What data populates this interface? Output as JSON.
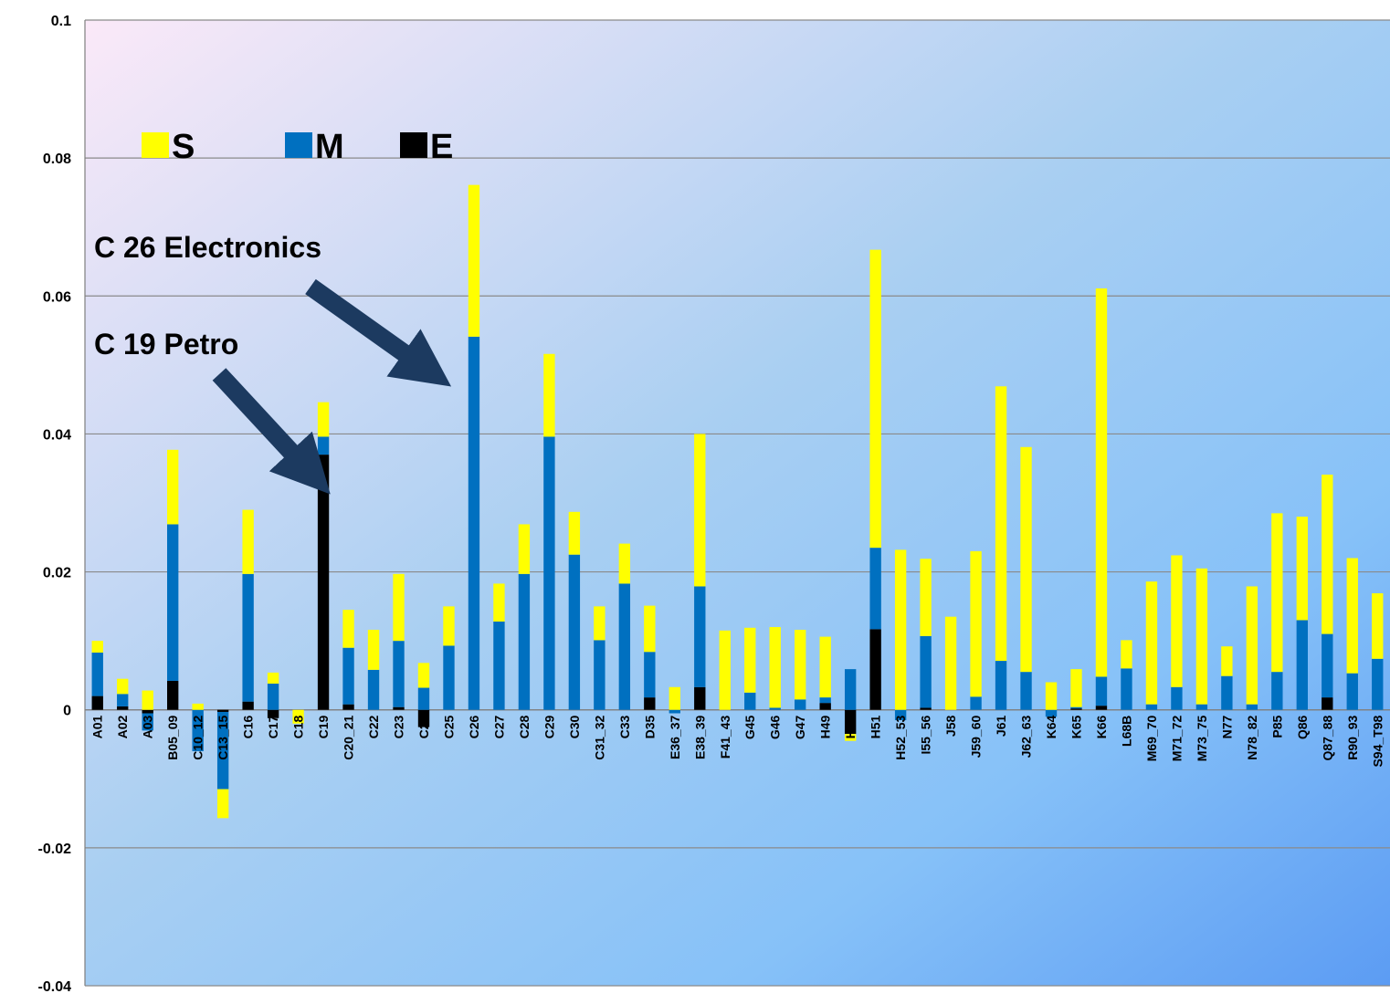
{
  "chart_data": {
    "type": "bar",
    "stacked": true,
    "title": "",
    "xlabel": "",
    "ylabel": "",
    "ylim": [
      -0.04,
      0.1
    ],
    "yticks": [
      -0.04,
      -0.02,
      0,
      0.02,
      0.04,
      0.06,
      0.08,
      0.1
    ],
    "ytick_labels": [
      "-0.04",
      "-0.02",
      "0",
      "0.02",
      "0.04",
      "0.06",
      "0.08",
      "0.1"
    ],
    "grid": "horizontal",
    "legend_placement": "top-left",
    "categories": [
      "A01",
      "A02",
      "A03",
      "B05_09",
      "C10_12",
      "C13_15",
      "C16",
      "C17",
      "C18",
      "C19",
      "C20_21",
      "C22",
      "C23",
      "C24",
      "C25",
      "C26",
      "C27",
      "C28",
      "C29",
      "C30",
      "C31_32",
      "C33",
      "D35",
      "E36_37",
      "E38_39",
      "F41_43",
      "G45",
      "G46",
      "G47",
      "H49",
      "H50",
      "H51",
      "H52_53",
      "I55_56",
      "J58",
      "J59_60",
      "J61",
      "J62_63",
      "K64",
      "K65",
      "K66",
      "L68B",
      "M69_70",
      "M71_72",
      "M73_75",
      "N77",
      "N78_82",
      "P85",
      "Q86",
      "Q87_88",
      "R90_93",
      "S94_T98"
    ],
    "series": [
      {
        "name": "E",
        "color": "#000000",
        "values": [
          0.002,
          0.0005,
          -0.0005,
          0.0042,
          0,
          -0.0003,
          0.0012,
          -0.0012,
          0,
          0.037,
          0.0008,
          0,
          0.0004,
          -0.0025,
          0,
          0,
          0,
          0,
          0,
          0,
          0,
          0,
          0.0018,
          0,
          0.0033,
          0,
          0,
          0,
          0,
          0.001,
          -0.0035,
          0.0117,
          0,
          0.0003,
          0,
          0,
          0,
          0,
          0,
          0.0002,
          0.0006,
          0,
          0,
          0,
          0,
          0,
          0,
          0,
          0,
          0.0018,
          0,
          0
        ]
      },
      {
        "name": "M",
        "color": "#0070c0",
        "values": [
          0.0063,
          0.0018,
          -0.0025,
          0.0227,
          -0.006,
          -0.0112,
          0.0185,
          0.0038,
          0,
          0.0026,
          0.0082,
          0.0058,
          0.0096,
          0.0032,
          0.0093,
          0.0541,
          0.0128,
          0.0197,
          0.0396,
          0.0225,
          0.0101,
          0.0183,
          0.0066,
          -0.0005,
          0.0146,
          0,
          0.0025,
          0.0003,
          0.0015,
          0.0008,
          0.0059,
          0.0118,
          -0.0015,
          0.0104,
          0,
          0.0019,
          0.0071,
          0.0055,
          -0.001,
          0.0002,
          0.0042,
          0.006,
          0.0008,
          0.0033,
          0.0008,
          0.0049,
          0.0008,
          0.0055,
          0.013,
          0.0092,
          0.0053,
          0.0074
        ]
      },
      {
        "name": "S",
        "color": "#ffff00",
        "values": [
          0.0017,
          0.0022,
          0.0028,
          0.0108,
          0.0009,
          -0.0042,
          0.0093,
          0.0016,
          -0.002,
          0.005,
          0.0055,
          0.0058,
          0.0097,
          0.0036,
          0.0057,
          0.022,
          0.0055,
          0.0072,
          0.012,
          0.0062,
          0.0049,
          0.0058,
          0.0067,
          0.0033,
          0.0221,
          0.0115,
          0.0094,
          0.0117,
          0.0101,
          0.0088,
          -0.001,
          0.0432,
          0.0232,
          0.0112,
          0.0135,
          0.0211,
          0.0398,
          0.0326,
          0.004,
          0.0055,
          0.0563,
          0.0041,
          0.0178,
          0.0191,
          0.0197,
          0.0043,
          0.0171,
          0.023,
          0.015,
          0.0231,
          0.0167,
          0.0095
        ]
      }
    ],
    "legend": [
      "S",
      "M",
      "E"
    ],
    "annotations": [
      {
        "text": "C 26 Electronics",
        "target": "C26"
      },
      {
        "text": "C 19 Petro",
        "target": "C19"
      }
    ]
  }
}
